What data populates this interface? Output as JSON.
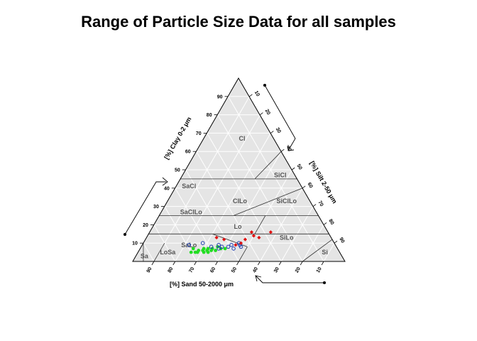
{
  "chart_data": {
    "type": "scatter",
    "subtype": "ternary-soil-texture-triangle",
    "title": "Range of Particle Size Data for all samples",
    "axes": {
      "clay": {
        "label": "[%] Clay 0-2 μm",
        "ticks": [
          10,
          20,
          30,
          40,
          50,
          60,
          70,
          80,
          90
        ]
      },
      "silt": {
        "label": "[%] Silt 2-50 μm",
        "ticks": [
          10,
          20,
          30,
          40,
          50,
          60,
          70,
          80,
          90
        ]
      },
      "sand": {
        "label": "[%] Sand 50-2000 μm",
        "ticks": [
          90,
          80,
          70,
          60,
          50,
          40,
          30,
          20,
          10
        ]
      }
    },
    "grid": true,
    "classes": [
      {
        "label": "Cl",
        "clay": 67,
        "silt": 18
      },
      {
        "label": "SiCl",
        "clay": 47,
        "silt": 46
      },
      {
        "label": "SaCl",
        "clay": 41,
        "silt": 6
      },
      {
        "label": "ClLo",
        "clay": 33,
        "silt": 34
      },
      {
        "label": "SiClLo",
        "clay": 33,
        "silt": 56
      },
      {
        "label": "SaClLo",
        "clay": 27,
        "silt": 14
      },
      {
        "label": "Lo",
        "clay": 19,
        "silt": 40
      },
      {
        "label": "SiLo",
        "clay": 13,
        "silt": 66
      },
      {
        "label": "SaLo",
        "clay": 9,
        "silt": 22
      },
      {
        "label": "LoSa",
        "clay": 5,
        "silt": 14
      },
      {
        "label": "Sa",
        "clay": 3,
        "silt": 4
      },
      {
        "label": "Si",
        "clay": 5,
        "silt": 88
      }
    ],
    "series": [
      {
        "marker": "filled-circle",
        "color": "#22dd22",
        "points": [
          {
            "clay": 7,
            "silt": 25
          },
          {
            "clay": 5,
            "silt": 25
          },
          {
            "clay": 5,
            "silt": 27
          },
          {
            "clay": 6,
            "silt": 28
          },
          {
            "clay": 5,
            "silt": 28
          },
          {
            "clay": 7,
            "silt": 30
          },
          {
            "clay": 6,
            "silt": 30
          },
          {
            "clay": 5,
            "silt": 31
          },
          {
            "clay": 7,
            "silt": 32
          },
          {
            "clay": 6,
            "silt": 32
          },
          {
            "clay": 5,
            "silt": 33
          },
          {
            "clay": 7,
            "silt": 34
          },
          {
            "clay": 6,
            "silt": 34
          },
          {
            "clay": 6,
            "silt": 36
          },
          {
            "clay": 7,
            "silt": 38
          },
          {
            "clay": 8,
            "silt": 36
          },
          {
            "clay": 7,
            "silt": 40
          }
        ]
      },
      {
        "marker": "open-circle",
        "color": "#1f3fb0",
        "points": [
          {
            "clay": 9,
            "silt": 22
          },
          {
            "clay": 10,
            "silt": 28
          },
          {
            "clay": 8,
            "silt": 33
          },
          {
            "clay": 9,
            "silt": 36
          },
          {
            "clay": 7,
            "silt": 37
          },
          {
            "clay": 8,
            "silt": 38
          },
          {
            "clay": 8,
            "silt": 41
          },
          {
            "clay": 9,
            "silt": 42
          },
          {
            "clay": 7,
            "silt": 44
          },
          {
            "clay": 9,
            "silt": 46
          },
          {
            "clay": 8,
            "silt": 47
          },
          {
            "clay": 10,
            "silt": 45
          }
        ]
      },
      {
        "marker": "filled-diamond",
        "color": "#e11010",
        "points": [
          {
            "clay": 13,
            "silt": 33
          },
          {
            "clay": 12,
            "silt": 37
          },
          {
            "clay": 9,
            "silt": 44
          },
          {
            "clay": 10,
            "silt": 46
          },
          {
            "clay": 12,
            "silt": 47
          },
          {
            "clay": 14,
            "silt": 50
          },
          {
            "clay": 16,
            "silt": 48
          },
          {
            "clay": 13,
            "silt": 53
          },
          {
            "clay": 16,
            "silt": 57
          }
        ]
      }
    ]
  }
}
